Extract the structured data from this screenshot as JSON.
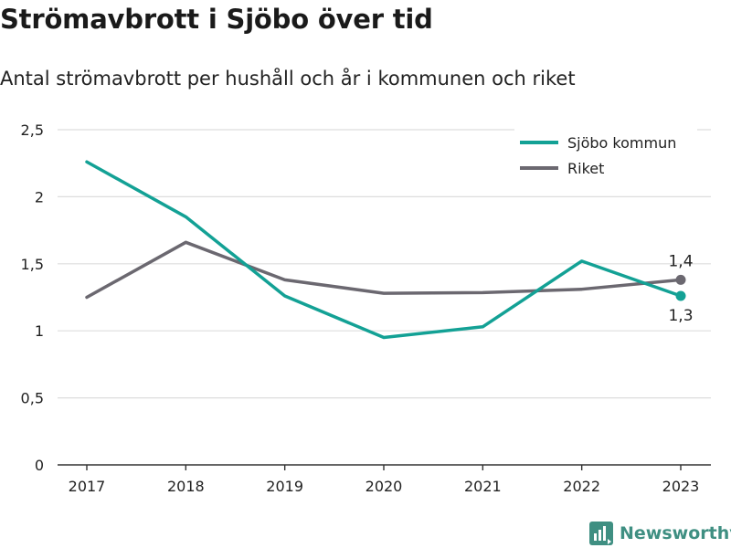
{
  "title": "Strömavbrott i Sjöbo över tid",
  "subtitle": "Antal strömavbrott per hushåll och år i kommunen och riket",
  "brand": {
    "name": "Newsworthy",
    "icon": "newsworthy-logo-icon"
  },
  "colors": {
    "sjobo": "#13a195",
    "riket": "#6b6870",
    "grid": "#dddddd",
    "axis": "#333333",
    "brand": "#3f8f82"
  },
  "chart_data": {
    "type": "line",
    "title": "Strömavbrott i Sjöbo över tid",
    "subtitle": "Antal strömavbrott per hushåll och år i kommunen och riket",
    "xlabel": "",
    "ylabel": "",
    "x": [
      "2017",
      "2018",
      "2019",
      "2020",
      "2021",
      "2022",
      "2023"
    ],
    "ylim": [
      0,
      2.5
    ],
    "yticks": [
      0,
      0.5,
      1,
      1.5,
      2,
      2.5
    ],
    "ytick_labels": [
      "0",
      "0,5",
      "1",
      "1,5",
      "2",
      "2,5"
    ],
    "grid": true,
    "legend_position": "top-right",
    "series": [
      {
        "name": "Sjöbo kommun",
        "values": [
          2.26,
          1.85,
          1.26,
          0.95,
          1.03,
          1.52,
          1.26
        ],
        "end_label": "1,3"
      },
      {
        "name": "Riket",
        "values": [
          1.25,
          1.66,
          1.38,
          1.28,
          1.285,
          1.31,
          1.38
        ],
        "end_label": "1,4"
      }
    ]
  }
}
